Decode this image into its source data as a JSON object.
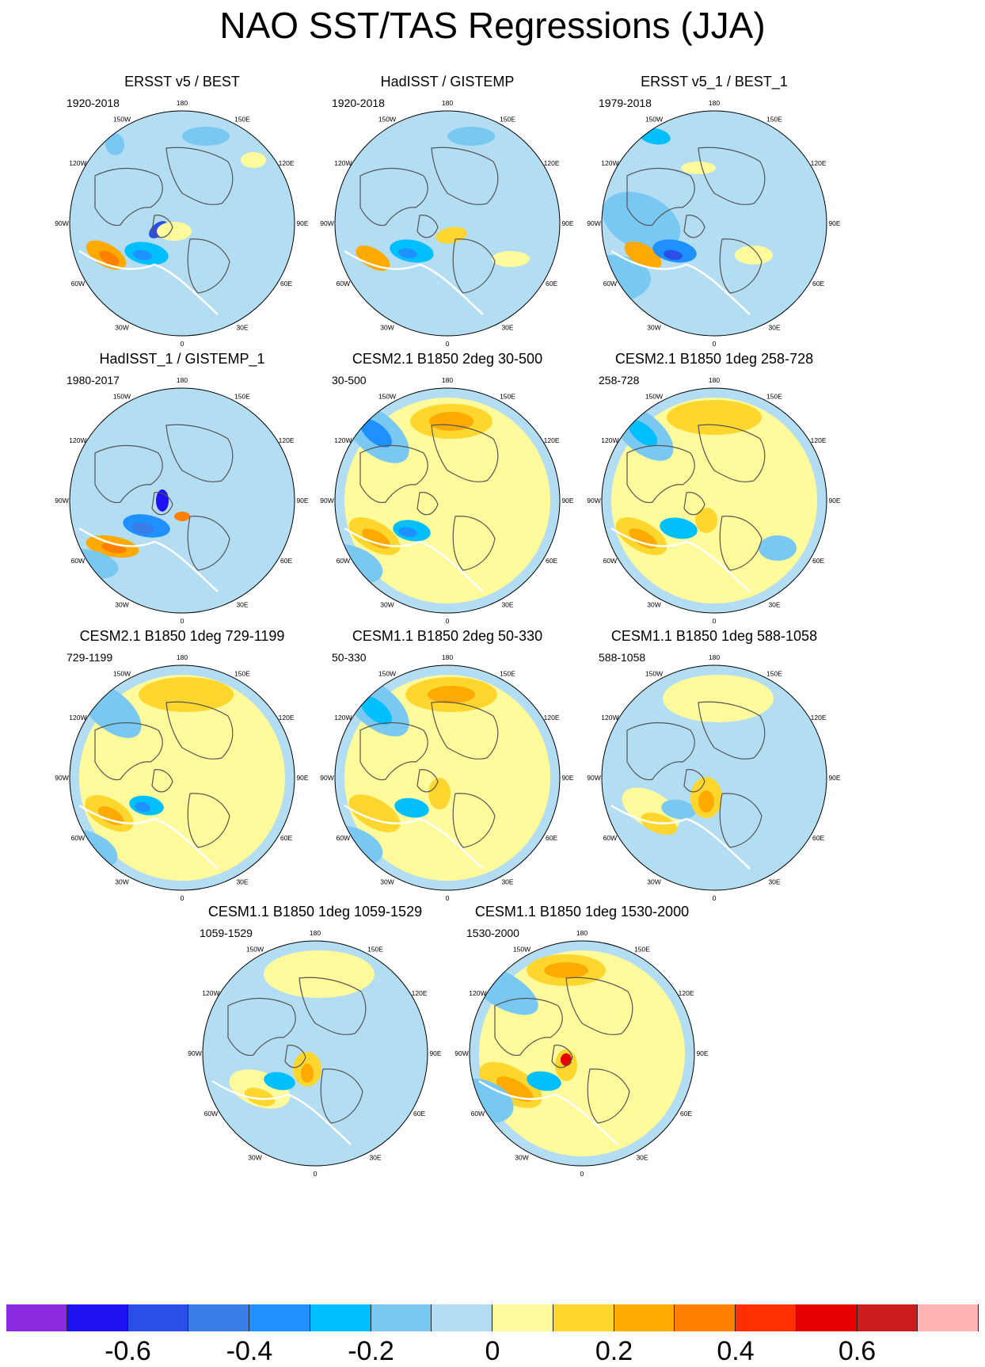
{
  "title": "NAO SST/TAS Regressions (JJA)",
  "colors": {
    "land_white": "#ffffff",
    "light_blue": "#b3ddf2",
    "light_yellow": "#fffa9b",
    "coast": "#555555"
  },
  "lon_labels": [
    "180",
    "150E",
    "120E",
    "90E",
    "60E",
    "30E",
    "0",
    "30W",
    "60W",
    "90W",
    "120W",
    "150W"
  ],
  "panels": [
    {
      "title": "ERSST v5 / BEST",
      "period": "1920-2018"
    },
    {
      "title": "HadISST / GISTEMP",
      "period": "1920-2018"
    },
    {
      "title": "ERSST v5_1 / BEST_1",
      "period": "1979-2018"
    },
    {
      "title": "HadISST_1 / GISTEMP_1",
      "period": "1980-2017"
    },
    {
      "title": "CESM2.1 B1850 2deg 30-500",
      "period": "30-500"
    },
    {
      "title": "CESM2.1 B1850 1deg 258-728",
      "period": "258-728"
    },
    {
      "title": "CESM2.1 B1850 1deg 729-1199",
      "period": "729-1199"
    },
    {
      "title": "CESM1.1 B1850 2deg 50-330",
      "period": "50-330"
    },
    {
      "title": "CESM1.1 B1850 1deg 588-1058",
      "period": "588-1058"
    },
    {
      "title": "CESM1.1 B1850 1deg 1059-1529",
      "period": "1059-1529"
    },
    {
      "title": "CESM1.1 B1850 1deg 1530-2000",
      "period": "1530-2000"
    }
  ],
  "colorbar": {
    "colors": [
      "#8a2be2",
      "#1e12f5",
      "#2a4ee8",
      "#3a7ce8",
      "#1e90ff",
      "#00bfff",
      "#79c8f2",
      "#b3ddf2",
      "#fffa9b",
      "#ffd62e",
      "#ffaa00",
      "#ff7f00",
      "#ff2f00",
      "#e60000",
      "#cc1c1c",
      "#ffb3b3"
    ],
    "labels": [
      "-0.6",
      "-0.4",
      "-0.2",
      "0",
      "0.2",
      "0.4",
      "0.6"
    ]
  }
}
